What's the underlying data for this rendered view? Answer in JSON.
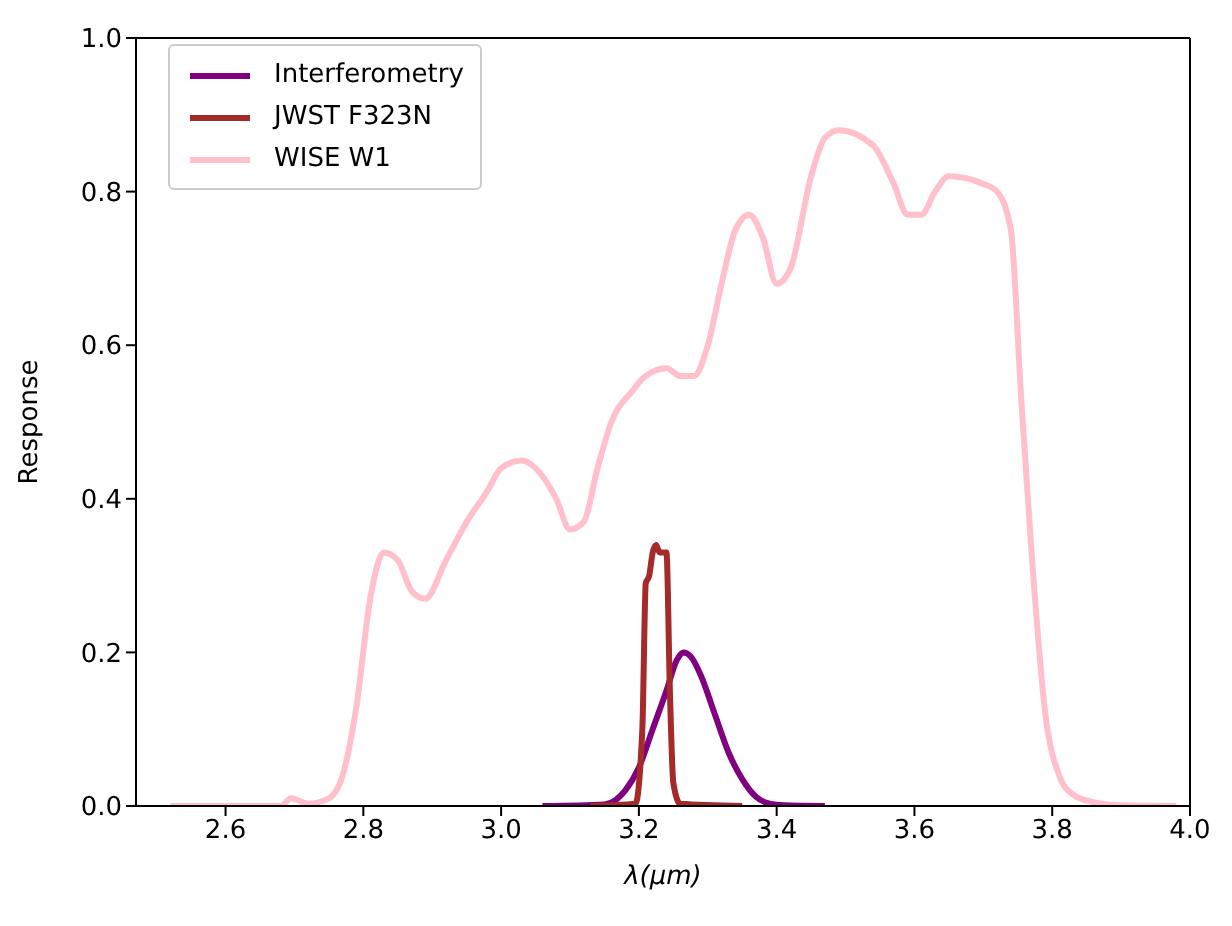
{
  "chart_data": {
    "type": "line",
    "xlabel": "λ(μm)",
    "ylabel": "Response",
    "xlim": [
      2.47,
      4.0
    ],
    "ylim": [
      0,
      1.0
    ],
    "xticks": [
      {
        "value": 2.6,
        "label": "2.6"
      },
      {
        "value": 2.8,
        "label": "2.8"
      },
      {
        "value": 3.0,
        "label": "3.0"
      },
      {
        "value": 3.2,
        "label": "3.2"
      },
      {
        "value": 3.4,
        "label": "3.4"
      },
      {
        "value": 3.6,
        "label": "3.6"
      },
      {
        "value": 3.8,
        "label": "3.8"
      },
      {
        "value": 4.0,
        "label": "4.0"
      }
    ],
    "yticks": [
      {
        "value": 0,
        "label": "0.0"
      },
      {
        "value": 0.2,
        "label": "0.2"
      },
      {
        "value": 0.4,
        "label": "0.4"
      },
      {
        "value": 0.6,
        "label": "0.6"
      },
      {
        "value": 0.8,
        "label": "0.8"
      },
      {
        "value": 1.0,
        "label": "1.0"
      }
    ],
    "grid": false,
    "legend": "top left",
    "marker": "none",
    "line_style": "solid",
    "series": [
      {
        "name": "Interferometry",
        "color": "#800080",
        "x": [
          3.06,
          3.15,
          3.18,
          3.2,
          3.22,
          3.24,
          3.255,
          3.265,
          3.275,
          3.29,
          3.31,
          3.33,
          3.35,
          3.37,
          3.39,
          3.41,
          3.47
        ],
        "values": [
          0,
          0.002,
          0.02,
          0.05,
          0.1,
          0.15,
          0.19,
          0.2,
          0.195,
          0.17,
          0.12,
          0.07,
          0.035,
          0.012,
          0.003,
          0.001,
          0
        ]
      },
      {
        "name": "JWST F323N",
        "color": "#a52a2a",
        "x": [
          3.13,
          3.195,
          3.205,
          3.21,
          3.215,
          3.22,
          3.225,
          3.23,
          3.24,
          3.245,
          3.25,
          3.26,
          3.35
        ],
        "values": [
          0,
          0.003,
          0.1,
          0.29,
          0.3,
          0.33,
          0.34,
          0.33,
          0.33,
          0.15,
          0.03,
          0.003,
          0
        ]
      },
      {
        "name": "WISE W1",
        "color": "#ffc0cb",
        "x": [
          2.52,
          2.68,
          2.695,
          2.72,
          2.75,
          2.77,
          2.79,
          2.81,
          2.83,
          2.85,
          2.87,
          2.89,
          2.92,
          2.95,
          2.98,
          3.0,
          3.03,
          3.05,
          3.08,
          3.1,
          3.12,
          3.14,
          3.16,
          3.19,
          3.21,
          3.24,
          3.26,
          3.28,
          3.3,
          3.32,
          3.34,
          3.36,
          3.38,
          3.4,
          3.42,
          3.45,
          3.47,
          3.49,
          3.54,
          3.57,
          3.59,
          3.61,
          3.63,
          3.65,
          3.7,
          3.72,
          3.74,
          3.755,
          3.77,
          3.79,
          3.81,
          3.83,
          3.86,
          3.9,
          3.98
        ],
        "values": [
          0,
          0,
          0.01,
          0.003,
          0.01,
          0.04,
          0.13,
          0.27,
          0.33,
          0.32,
          0.28,
          0.27,
          0.32,
          0.37,
          0.41,
          0.44,
          0.45,
          0.44,
          0.4,
          0.36,
          0.37,
          0.44,
          0.5,
          0.54,
          0.56,
          0.57,
          0.56,
          0.56,
          0.6,
          0.68,
          0.75,
          0.77,
          0.74,
          0.68,
          0.7,
          0.82,
          0.87,
          0.88,
          0.86,
          0.81,
          0.77,
          0.77,
          0.8,
          0.82,
          0.81,
          0.8,
          0.75,
          0.53,
          0.33,
          0.12,
          0.04,
          0.015,
          0.005,
          0.001,
          0
        ]
      }
    ]
  }
}
